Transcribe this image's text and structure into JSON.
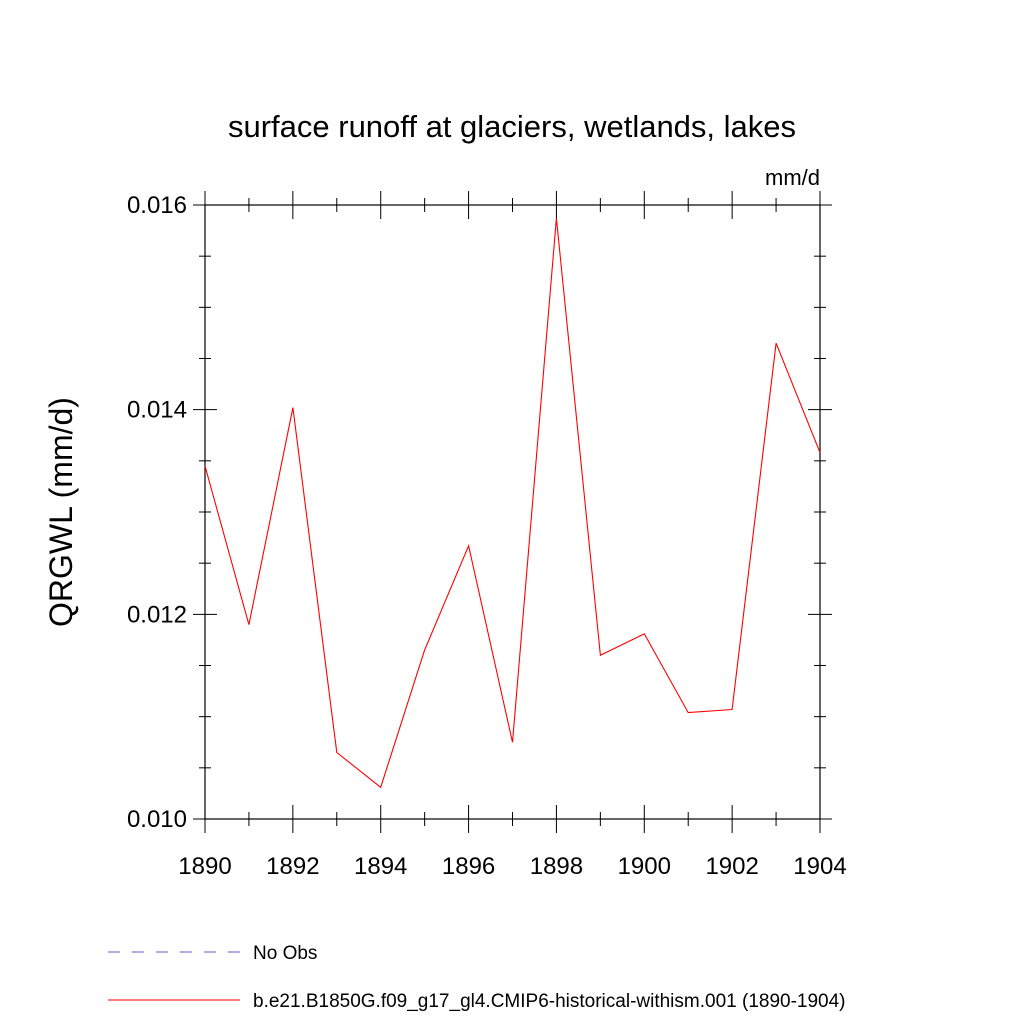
{
  "chart_data": {
    "type": "line",
    "title": "surface runoff at glaciers, wetlands, lakes",
    "units_label": "mm/d",
    "ylabel": "QRGWL  (mm/d)",
    "xlabel": "",
    "xlim": [
      1890,
      1904
    ],
    "ylim": [
      0.01,
      0.016
    ],
    "x_ticks": [
      1890,
      1892,
      1894,
      1896,
      1898,
      1900,
      1902,
      1904
    ],
    "x_tick_labels": [
      "1890",
      "1892",
      "1894",
      "1896",
      "1898",
      "1900",
      "1902",
      "1904"
    ],
    "y_ticks": [
      0.01,
      0.012,
      0.014,
      0.016
    ],
    "y_tick_labels": [
      "0.010",
      "0.012",
      "0.014",
      "0.016"
    ],
    "grid": false,
    "legend_placement": "bottom-left",
    "x": [
      1890,
      1891,
      1892,
      1893,
      1894,
      1895,
      1896,
      1897,
      1898,
      1899,
      1900,
      1901,
      1902,
      1903,
      1904
    ],
    "series": [
      {
        "name": "b.e21.B1850G.f09_g17_gl4.CMIP6-historical-withism.001 (1890-1904)",
        "color": "#ff0000",
        "values": [
          0.01345,
          0.0119,
          0.01402,
          0.01065,
          0.01031,
          0.01165,
          0.01267,
          0.01075,
          0.01587,
          0.0116,
          0.01181,
          0.01104,
          0.01107,
          0.01465,
          0.01358
        ]
      }
    ],
    "legend": [
      {
        "label": "No Obs",
        "color": "#6a5acd",
        "style": "dashed"
      },
      {
        "label": "b.e21.B1850G.f09_g17_gl4.CMIP6-historical-withism.001 (1890-1904)",
        "color": "#ff0000",
        "style": "solid"
      }
    ]
  }
}
